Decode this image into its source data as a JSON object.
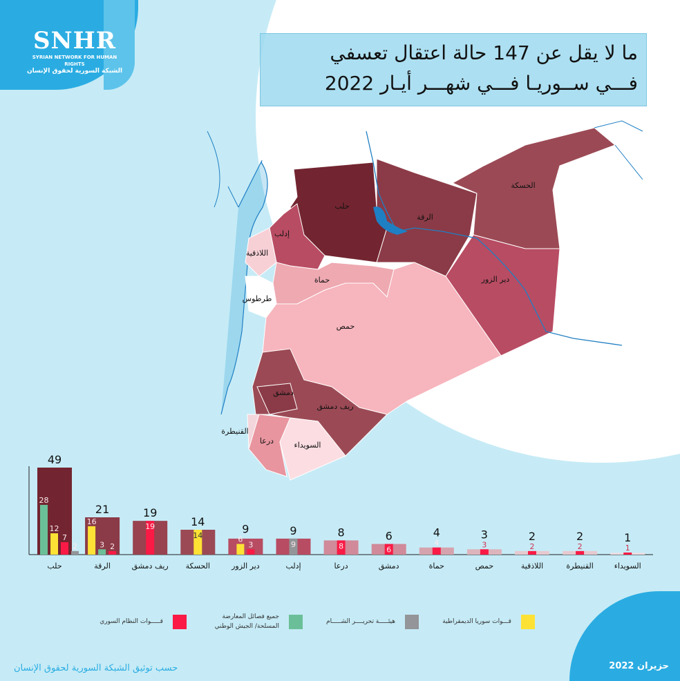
{
  "logo": {
    "abbr": "SNHR",
    "english": "SYRIAN NETWORK FOR HUMAN RIGHTS",
    "arabic": "الشبكة السورية لحقوق الإنسان"
  },
  "title": {
    "line1": "ما لا يقل عن 147 حالة اعتقال تعسفي",
    "line2": "فـــي ســوريـا فـــي شهـــر أيـار 2022"
  },
  "map_labels": [
    "حلب",
    "الرقة",
    "الحسكة",
    "إدلب",
    "اللاذقية",
    "حماة",
    "طرطوس",
    "حمص",
    "دير الزور",
    "دمشق",
    "ريف دمشق",
    "القنيطرة",
    "درعا",
    "السويداء"
  ],
  "legend": [
    {
      "label": "قـــــوات النظام السوري",
      "color": "#fa1a45"
    },
    {
      "label": "جميع فصائل المعارضة المسلحة/ الجيش الوطني",
      "color": "#6bbf98"
    },
    {
      "label": "هيئـــــة تحريــــر الشـــــام",
      "color": "#939598"
    },
    {
      "label": "قـــوات سوريا الديمقراطية",
      "color": "#fde235"
    }
  ],
  "chart_data": {
    "type": "bar",
    "title": "ما لا يقل عن 147 حالة اعتقال تعسفي في سوريا في شهر أيار 2022",
    "categories": [
      "حلب",
      "الرقة",
      "ريف دمشق",
      "الحسكة",
      "دير الزور",
      "إدلب",
      "درعا",
      "دمشق",
      "حماة",
      "حمص",
      "اللاذقية",
      "القنيطرة",
      "السويداء"
    ],
    "totals": [
      49,
      21,
      19,
      14,
      9,
      9,
      8,
      6,
      4,
      3,
      2,
      2,
      1
    ],
    "total_colors": [
      "#722530",
      "#8b3b47",
      "#98434f",
      "#9b4a55",
      "#b84c63",
      "#b84c63",
      "#d08a99",
      "#d08a99",
      "#d5a3ad",
      "#ddb4bc",
      "#e6c9cf",
      "#e6c9cf",
      "#efdde1"
    ],
    "breakdown": [
      [
        {
          "series": "opposition",
          "value": 28
        },
        {
          "series": "sdf",
          "value": 12
        },
        {
          "series": "regime",
          "value": 7
        },
        {
          "series": "hts",
          "value": 2
        }
      ],
      [
        {
          "series": "sdf",
          "value": 16
        },
        {
          "series": "opposition",
          "value": 3
        },
        {
          "series": "regime",
          "value": 2
        }
      ],
      [
        {
          "series": "regime",
          "value": 19
        }
      ],
      [
        {
          "series": "sdf",
          "value": 14
        }
      ],
      [
        {
          "series": "sdf",
          "value": 6
        },
        {
          "series": "regime",
          "value": 3
        }
      ],
      [
        {
          "series": "hts",
          "value": 9
        }
      ],
      [
        {
          "series": "regime",
          "value": 8
        }
      ],
      [
        {
          "series": "regime",
          "value": 6
        }
      ],
      [
        {
          "series": "regime",
          "value": 4
        }
      ],
      [
        {
          "series": "regime",
          "value": 3
        }
      ],
      [
        {
          "series": "regime",
          "value": 2
        }
      ],
      [
        {
          "series": "regime",
          "value": 2
        }
      ],
      [
        {
          "series": "regime",
          "value": 1
        }
      ]
    ],
    "series_colors": {
      "regime": "#fa1a45",
      "opposition": "#6bbf98",
      "hts": "#939598",
      "sdf": "#fde235"
    },
    "ylim": [
      0,
      50
    ]
  },
  "footer": {
    "source": "حسب توثيق الشبكة السورية لحقوق الإنسان",
    "date": "حزيران 2022"
  }
}
